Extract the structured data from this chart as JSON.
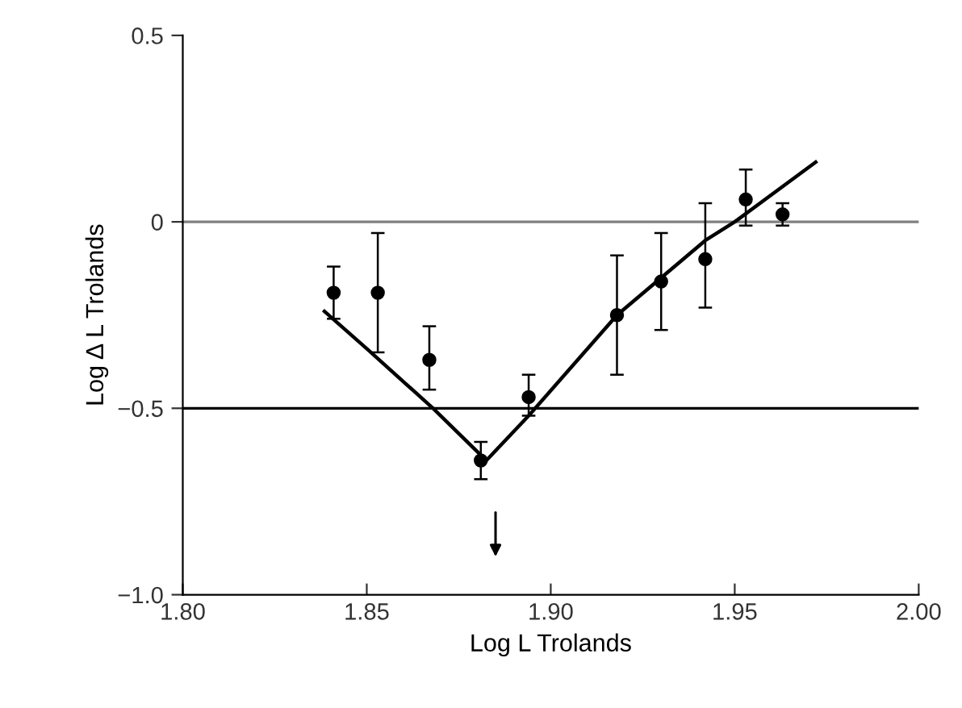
{
  "chart_data": {
    "type": "scatter",
    "xlabel": "Log L Trolands",
    "ylabel": "Log Δ L Trolands",
    "xlim": [
      1.8,
      2.0
    ],
    "ylim": [
      -1.0,
      0.5
    ],
    "xticks": [
      {
        "value": 1.8,
        "label": "1.80"
      },
      {
        "value": 1.85,
        "label": "1.85"
      },
      {
        "value": 1.9,
        "label": "1.90"
      },
      {
        "value": 1.95,
        "label": "1.95"
      },
      {
        "value": 2.0,
        "label": "2.00"
      }
    ],
    "yticks": [
      {
        "value": -1.0,
        "label": "−1.0"
      },
      {
        "value": -0.5,
        "label": "−0.5"
      },
      0,
      0.5
    ],
    "grid": false,
    "legend": false,
    "ref_lines": [
      {
        "axis": "y",
        "value": 0,
        "color": "#808080"
      },
      {
        "axis": "y",
        "value": -0.5,
        "color": "#000000"
      }
    ],
    "series": [
      {
        "color": "#000000",
        "marker": "circle",
        "x": [
          1.841,
          1.853,
          1.867,
          1.881,
          1.894,
          1.918,
          1.93,
          1.942,
          1.953,
          1.963
        ],
        "values": [
          -0.19,
          -0.19,
          -0.37,
          -0.64,
          -0.47,
          -0.25,
          -0.16,
          -0.1,
          0.06,
          0.02
        ],
        "errors": [
          [
            -0.26,
            -0.12
          ],
          [
            -0.35,
            -0.03
          ],
          [
            -0.45,
            -0.28
          ],
          [
            -0.69,
            -0.59
          ],
          [
            -0.52,
            -0.41
          ],
          [
            -0.41,
            -0.09
          ],
          [
            -0.29,
            -0.03
          ],
          [
            -0.23,
            0.05
          ],
          [
            -0.01,
            0.14
          ],
          [
            -0.01,
            0.05
          ]
        ]
      },
      {
        "type": "line",
        "color": "#000000",
        "marker": "none",
        "line_style": "solid",
        "x": [
          1.8385,
          1.85,
          1.868,
          1.8825,
          1.894,
          1.918,
          1.93,
          1.942,
          1.95,
          1.972
        ],
        "values": [
          -0.24,
          -0.34,
          -0.5,
          -0.64,
          -0.52,
          -0.25,
          -0.15,
          -0.05,
          0.0,
          0.16
        ]
      }
    ]
  }
}
